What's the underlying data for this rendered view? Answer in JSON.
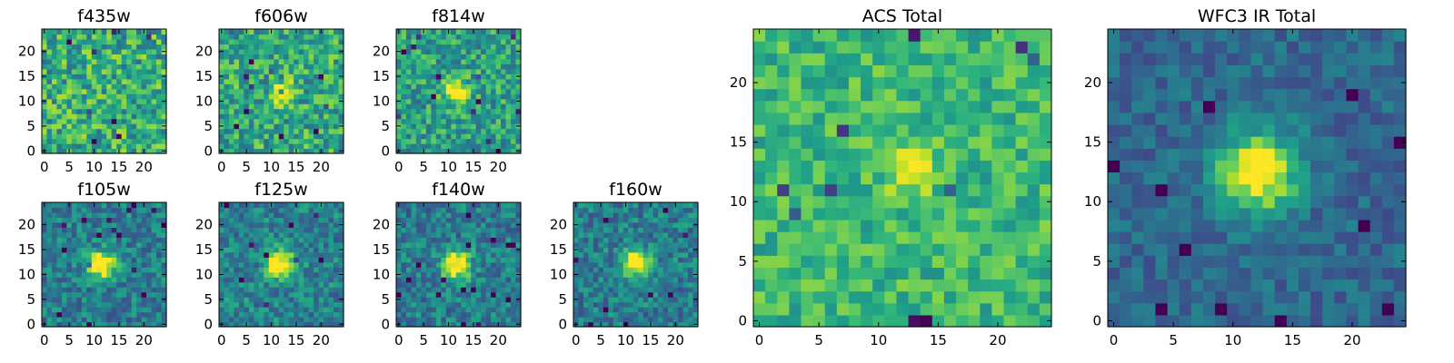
{
  "chart_data": [
    {
      "id": "f435w",
      "type": "heatmap",
      "title": "f435w",
      "xlim": [
        0,
        24
      ],
      "ylim": [
        0,
        24
      ],
      "xticks": [
        "0",
        "5",
        "10",
        "15",
        "20"
      ],
      "yticks": [
        "0",
        "5",
        "10",
        "15",
        "20"
      ],
      "noise": 0.26,
      "base": 0.62,
      "peak": 0.0,
      "sigma": 2.2,
      "center": [
        12,
        12
      ],
      "seed": 11
    },
    {
      "id": "f606w",
      "type": "heatmap",
      "title": "f606w",
      "xlim": [
        0,
        24
      ],
      "ylim": [
        0,
        24
      ],
      "xticks": [
        "0",
        "5",
        "10",
        "15",
        "20"
      ],
      "yticks": [
        "0",
        "5",
        "10",
        "15",
        "20"
      ],
      "noise": 0.24,
      "base": 0.6,
      "peak": 0.45,
      "sigma": 1.6,
      "center": [
        12,
        12
      ],
      "seed": 23
    },
    {
      "id": "f814w",
      "type": "heatmap",
      "title": "f814w",
      "xlim": [
        0,
        24
      ],
      "ylim": [
        0,
        24
      ],
      "xticks": [
        "0",
        "5",
        "10",
        "15",
        "20"
      ],
      "yticks": [
        "0",
        "5",
        "10",
        "15",
        "20"
      ],
      "noise": 0.22,
      "base": 0.56,
      "peak": 0.6,
      "sigma": 1.7,
      "center": [
        11.5,
        12
      ],
      "seed": 37
    },
    {
      "id": "f105w",
      "type": "heatmap",
      "title": "f105w",
      "xlim": [
        0,
        24
      ],
      "ylim": [
        0,
        24
      ],
      "xticks": [
        "0",
        "5",
        "10",
        "15",
        "20"
      ],
      "yticks": [
        "0",
        "5",
        "10",
        "15",
        "20"
      ],
      "noise": 0.18,
      "base": 0.42,
      "peak": 0.75,
      "sigma": 1.9,
      "center": [
        11.5,
        12
      ],
      "seed": 41
    },
    {
      "id": "f125w",
      "type": "heatmap",
      "title": "f125w",
      "xlim": [
        0,
        24
      ],
      "ylim": [
        0,
        24
      ],
      "xticks": [
        "0",
        "5",
        "10",
        "15",
        "20"
      ],
      "yticks": [
        "0",
        "5",
        "10",
        "15",
        "20"
      ],
      "noise": 0.18,
      "base": 0.44,
      "peak": 0.7,
      "sigma": 2.0,
      "center": [
        12,
        12
      ],
      "seed": 53
    },
    {
      "id": "f140w",
      "type": "heatmap",
      "title": "f140w",
      "xlim": [
        0,
        24
      ],
      "ylim": [
        0,
        24
      ],
      "xticks": [
        "0",
        "5",
        "10",
        "15",
        "20"
      ],
      "yticks": [
        "0",
        "5",
        "10",
        "15",
        "20"
      ],
      "noise": 0.18,
      "base": 0.42,
      "peak": 0.72,
      "sigma": 2.0,
      "center": [
        11.5,
        12
      ],
      "seed": 67
    },
    {
      "id": "f160w",
      "type": "heatmap",
      "title": "f160w",
      "xlim": [
        0,
        24
      ],
      "ylim": [
        0,
        24
      ],
      "xticks": [
        "0",
        "5",
        "10",
        "15",
        "20"
      ],
      "yticks": [
        "0",
        "5",
        "10",
        "15",
        "20"
      ],
      "noise": 0.18,
      "base": 0.42,
      "peak": 0.75,
      "sigma": 1.9,
      "center": [
        12,
        12.5
      ],
      "seed": 79
    },
    {
      "id": "acs-total",
      "type": "heatmap",
      "title": "ACS Total",
      "xlim": [
        0,
        24
      ],
      "ylim": [
        0,
        24
      ],
      "xticks": [
        "0",
        "5",
        "10",
        "15",
        "20"
      ],
      "yticks": [
        "0",
        "5",
        "10",
        "15",
        "20"
      ],
      "noise": 0.16,
      "base": 0.66,
      "peak": 0.35,
      "sigma": 1.4,
      "center": [
        12.5,
        12.5
      ],
      "seed": 97
    },
    {
      "id": "wfc3-ir-total",
      "type": "heatmap",
      "title": "WFC3 IR Total",
      "xlim": [
        0,
        24
      ],
      "ylim": [
        0,
        24
      ],
      "xticks": [
        "0",
        "5",
        "10",
        "15",
        "20"
      ],
      "yticks": [
        "0",
        "5",
        "10",
        "15",
        "20"
      ],
      "noise": 0.12,
      "base": 0.34,
      "peak": 0.75,
      "sigma": 2.3,
      "center": [
        12,
        12.5
      ],
      "seed": 131
    }
  ],
  "colormap": "viridis",
  "colormap_stops": [
    "#440154",
    "#482878",
    "#3e4a89",
    "#31688e",
    "#26828e",
    "#1f9e89",
    "#35b779",
    "#6ece58",
    "#b5de2b",
    "#fde725"
  ],
  "grid": "off"
}
